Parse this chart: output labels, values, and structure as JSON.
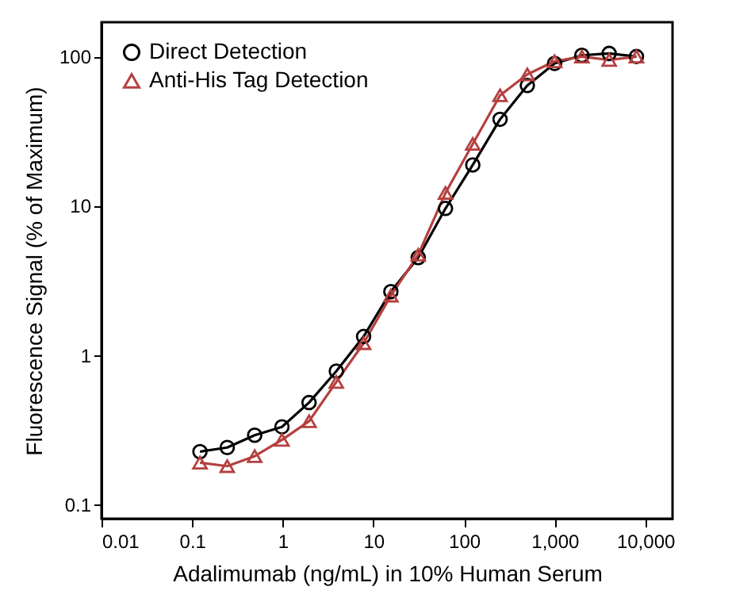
{
  "chart_data": {
    "type": "line",
    "xlabel": "Adalimumab (ng/mL) in 10% Human Serum",
    "ylabel": "Fluorescence Signal (% of Maximum)",
    "x": [
      0.122,
      0.244,
      0.49,
      0.98,
      1.95,
      3.9,
      7.8,
      15.6,
      31.25,
      62.5,
      125,
      250,
      500,
      1000,
      2000,
      4000,
      8000
    ],
    "series": [
      {
        "name": "Direct Detection",
        "color": "#000000",
        "marker": "circle",
        "values": [
          0.225,
          0.24,
          0.29,
          0.33,
          0.48,
          0.78,
          1.33,
          2.66,
          4.5,
          9.6,
          18.8,
          38,
          64,
          90,
          102,
          105,
          100
        ]
      },
      {
        "name": "Anti-His Tag Detection",
        "color": "#b5403f",
        "marker": "triangle",
        "values": [
          0.19,
          0.18,
          0.21,
          0.27,
          0.36,
          0.66,
          1.2,
          2.5,
          4.7,
          12.2,
          26,
          55,
          76,
          93,
          100,
          95,
          100
        ]
      }
    ],
    "log": "xy",
    "xlim": [
      0.01,
      20000
    ],
    "ylim": [
      0.08,
      170
    ],
    "xticks": [
      0.01,
      0.1,
      1,
      10,
      100,
      {
        "value": 1000,
        "label": "1,000"
      },
      {
        "value": 10000,
        "label": "10,000"
      }
    ],
    "yticks": [
      0.1,
      1,
      10,
      100
    ],
    "grid": false,
    "legend": "top left",
    "line_style": "solid"
  }
}
